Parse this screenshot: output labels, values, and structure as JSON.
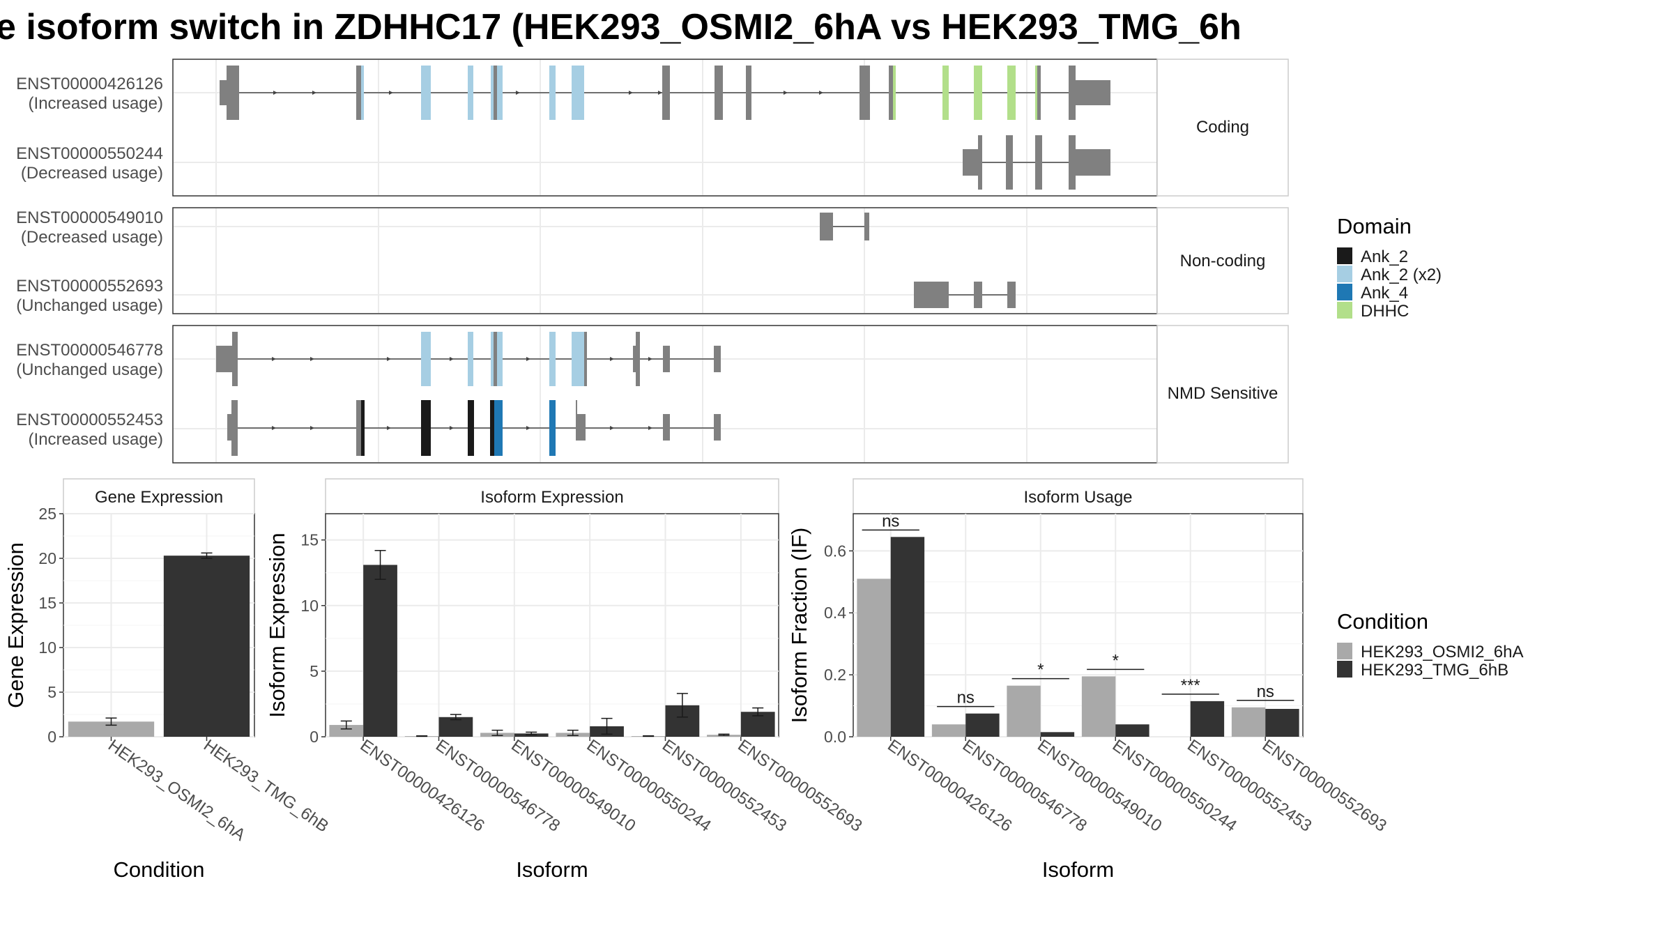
{
  "title": "e isoform switch in ZDHHC17 (HEK293_OSMI2_6hA vs HEK293_TMG_6h",
  "structure": {
    "facets": [
      "Coding",
      "Non-coding",
      "NMD Sensitive"
    ],
    "transcripts": [
      {
        "id": "ENST00000426126",
        "usage": "(Increased usage)",
        "group": "Coding"
      },
      {
        "id": "ENST00000550244",
        "usage": "(Decreased usage)",
        "group": "Coding"
      },
      {
        "id": "ENST00000549010",
        "usage": "(Decreased usage)",
        "group": "Non-coding"
      },
      {
        "id": "ENST00000552693",
        "usage": "(Unchanged usage)",
        "group": "Non-coding"
      },
      {
        "id": "ENST00000546778",
        "usage": "(Unchanged usage)",
        "group": "NMD Sensitive"
      },
      {
        "id": "ENST00000552453",
        "usage": "(Increased usage)",
        "group": "NMD Sensitive"
      }
    ]
  },
  "legend_domain": {
    "title": "Domain",
    "items": [
      {
        "label": "Ank_2",
        "color": "#1a1a1a"
      },
      {
        "label": "Ank_2 (x2)",
        "color": "#a6cee3"
      },
      {
        "label": "Ank_4",
        "color": "#1f78b4"
      },
      {
        "label": "DHHC",
        "color": "#b2df8a"
      }
    ]
  },
  "legend_condition": {
    "title": "Condition",
    "items": [
      {
        "label": "HEK293_OSMI2_6hA",
        "color": "#a9a9a9"
      },
      {
        "label": "HEK293_TMG_6hB",
        "color": "#333333"
      }
    ]
  },
  "chart_data": [
    {
      "type": "bar",
      "title": "Gene Expression",
      "xlabel": "Condition",
      "ylabel": "Gene Expression",
      "ylim": [
        0,
        25
      ],
      "yticks": [
        0,
        5,
        10,
        15,
        20,
        25
      ],
      "categories": [
        "HEK293_OSMI2_6hA",
        "HEK293_TMG_6hB"
      ],
      "values": [
        1.7,
        20.3
      ],
      "errors": [
        0.4,
        0.3
      ]
    },
    {
      "type": "bar",
      "title": "Isoform Expression",
      "xlabel": "Isoform",
      "ylabel": "Isoform Expression",
      "ylim": [
        0,
        17
      ],
      "yticks": [
        0,
        5,
        10,
        15
      ],
      "categories": [
        "ENST00000426126",
        "ENST00000546778",
        "ENST00000549010",
        "ENST00000550244",
        "ENST00000552453",
        "ENST00000552693"
      ],
      "series": [
        {
          "name": "HEK293_OSMI2_6hA",
          "values": [
            0.9,
            0.05,
            0.3,
            0.3,
            0.05,
            0.15
          ],
          "errors": [
            0.3,
            0.02,
            0.2,
            0.2,
            0.02,
            0.05
          ]
        },
        {
          "name": "HEK293_TMG_6hB",
          "values": [
            13.1,
            1.5,
            0.25,
            0.8,
            2.4,
            1.9
          ],
          "errors": [
            1.1,
            0.2,
            0.1,
            0.6,
            0.9,
            0.3
          ]
        }
      ]
    },
    {
      "type": "bar",
      "title": "Isoform Usage",
      "xlabel": "Isoform",
      "ylabel": "Isoform Fraction (IF)",
      "ylim": [
        0,
        0.72
      ],
      "yticks": [
        0.0,
        0.2,
        0.4,
        0.6
      ],
      "categories": [
        "ENST00000426126",
        "ENST00000546778",
        "ENST00000549010",
        "ENST00000550244",
        "ENST00000552453",
        "ENST00000552693"
      ],
      "series": [
        {
          "name": "HEK293_OSMI2_6hA",
          "values": [
            0.51,
            0.04,
            0.165,
            0.195,
            0.0,
            0.095
          ]
        },
        {
          "name": "HEK293_TMG_6hB",
          "values": [
            0.645,
            0.075,
            0.015,
            0.04,
            0.115,
            0.09
          ]
        }
      ],
      "significance": [
        "ns",
        "ns",
        "*",
        "*",
        "***",
        "ns"
      ]
    }
  ]
}
